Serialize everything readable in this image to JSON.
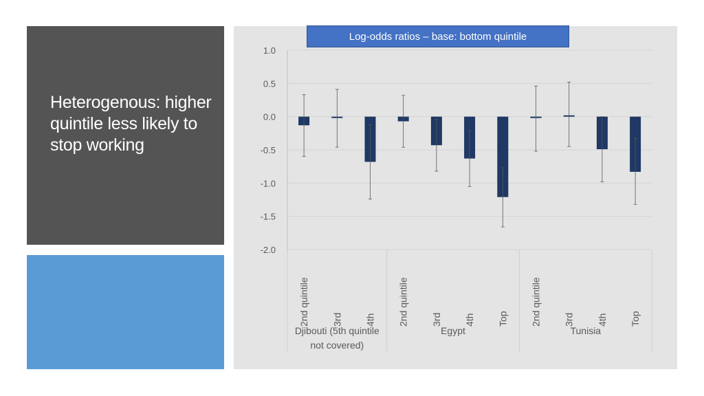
{
  "slide": {
    "heading": "Heterogenous: higher quintile less likely to stop working"
  },
  "colors": {
    "dark_panel": "#545454",
    "blue_panel": "#5b9bd5",
    "chart_background": "#e4e4e4",
    "bar_fill": "#1f3864",
    "title_box": "#4472c4"
  },
  "chart_data": {
    "type": "bar",
    "title": "Log-odds ratios – base: bottom quintile",
    "xlabel": "",
    "ylabel": "",
    "ylim": [
      -2.0,
      1.0
    ],
    "y_ticks": [
      1.0,
      0.5,
      0.0,
      -0.5,
      -1.0,
      -1.5,
      -2.0
    ],
    "y_tick_labels": [
      "1.0",
      "0.5",
      "0.0",
      "-0.5",
      "-1.0",
      "-1.5",
      "-2.0"
    ],
    "grid": true,
    "error_bars": true,
    "groups": [
      {
        "name": "Djibouti (5th quintile not covered)",
        "name_lines": [
          "Djibouti (5th quintile",
          "not covered)"
        ],
        "categories": [
          "2nd quintile",
          "3rd",
          "4th"
        ],
        "values": [
          -0.13,
          -0.02,
          -0.68
        ],
        "ci_low": [
          -0.6,
          -0.46,
          -1.24
        ],
        "ci_high": [
          0.33,
          0.41,
          -0.12
        ]
      },
      {
        "name": "Egypt",
        "name_lines": [
          "Egypt"
        ],
        "categories": [
          "2nd quintile",
          "3rd",
          "4th",
          "Top"
        ],
        "values": [
          -0.07,
          -0.43,
          -0.63,
          -1.21
        ],
        "ci_low": [
          -0.46,
          -0.82,
          -1.05,
          -1.66
        ],
        "ci_high": [
          0.32,
          -0.04,
          -0.21,
          -0.77
        ]
      },
      {
        "name": "Tunisia",
        "name_lines": [
          "Tunisia"
        ],
        "categories": [
          "2nd quintile",
          "3rd",
          "4th",
          "Top"
        ],
        "values": [
          -0.02,
          0.02,
          -0.49,
          -0.83
        ],
        "ci_low": [
          -0.52,
          -0.45,
          -0.98,
          -1.32
        ],
        "ci_high": [
          0.46,
          0.52,
          0.0,
          -0.33
        ]
      }
    ]
  }
}
